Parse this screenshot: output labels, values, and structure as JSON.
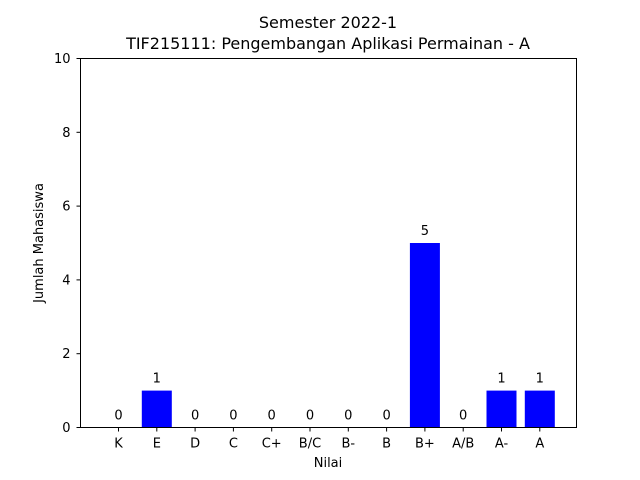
{
  "chart_data": {
    "type": "bar",
    "title": "Semester 2022-1",
    "subtitle": "TIF215111: Pengembangan Aplikasi Permainan - A",
    "xlabel": "Nilai",
    "ylabel": "Jumlah Mahasiswa",
    "categories": [
      "K",
      "E",
      "D",
      "C",
      "C+",
      "B/C",
      "B-",
      "B",
      "B+",
      "A/B",
      "A-",
      "A"
    ],
    "values": [
      0,
      1,
      0,
      0,
      0,
      0,
      0,
      0,
      5,
      0,
      1,
      1
    ],
    "data_labels": [
      "0",
      "1",
      "0",
      "0",
      "0",
      "0",
      "0",
      "0",
      "5",
      "0",
      "1",
      "1"
    ],
    "ylim": [
      0,
      10
    ],
    "yticks": [
      "0",
      "2",
      "4",
      "6",
      "8",
      "10"
    ],
    "bar_color": "#0000ff",
    "grid": false
  }
}
